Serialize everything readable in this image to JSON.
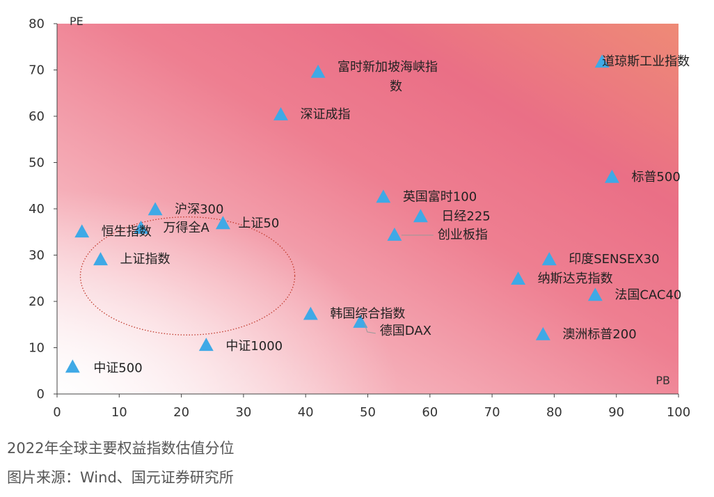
{
  "chart_data": {
    "type": "scatter",
    "xlabel": "PB",
    "ylabel": "PE",
    "xlim": [
      0,
      100
    ],
    "ylim": [
      0,
      80
    ],
    "x_ticks": [
      "0",
      "10",
      "20",
      "30",
      "40",
      "50",
      "60",
      "70",
      "80",
      "90",
      "100"
    ],
    "y_ticks": [
      "0",
      "10",
      "20",
      "30",
      "40",
      "50",
      "60",
      "70",
      "80"
    ],
    "marker": "triangle",
    "marker_color": "#3fa9e6",
    "grid": false,
    "highlight_circle": {
      "cx": 21,
      "cy": 25.5,
      "rx": 34.5,
      "ry": 25.5,
      "color": "#c0392b",
      "style": "dotted"
    },
    "points": [
      {
        "label": "中证500",
        "x": 2.5,
        "y": 5.8
      },
      {
        "label": "上证指数",
        "x": 7.0,
        "y": 29.0
      },
      {
        "label": "恒生指数",
        "x": 4.0,
        "y": 35.0
      },
      {
        "label": "万得全A",
        "x": 13.5,
        "y": 35.8
      },
      {
        "label": "沪深300",
        "x": 15.8,
        "y": 39.8
      },
      {
        "label": "上证50",
        "x": 26.7,
        "y": 36.8
      },
      {
        "label": "中证1000",
        "x": 24.0,
        "y": 10.5
      },
      {
        "label": "深证成指",
        "x": 36.0,
        "y": 60.3
      },
      {
        "label": "富时新加坡海峡指数",
        "x": 42.0,
        "y": 69.5
      },
      {
        "label": "韩国综合指数",
        "x": 40.8,
        "y": 17.2
      },
      {
        "label": "德国DAX",
        "x": 48.8,
        "y": 15.5
      },
      {
        "label": "英国富时100",
        "x": 52.5,
        "y": 42.5
      },
      {
        "label": "日经225",
        "x": 58.5,
        "y": 38.3
      },
      {
        "label": "创业板指",
        "x": 54.3,
        "y": 34.3
      },
      {
        "label": "印度SENSEX30",
        "x": 79.2,
        "y": 29.0
      },
      {
        "label": "纳斯达克指数",
        "x": 74.2,
        "y": 24.8
      },
      {
        "label": "法国CAC40",
        "x": 86.6,
        "y": 21.3
      },
      {
        "label": "澳洲标普200",
        "x": 78.2,
        "y": 12.8
      },
      {
        "label": "标普500",
        "x": 89.3,
        "y": 46.8
      },
      {
        "label": "道琼斯工业指数",
        "x": 87.7,
        "y": 71.7
      }
    ]
  },
  "caption": {
    "title": "2022年全球主要权益指数估值分位",
    "source": "图片来源：Wind、国元证券研究所"
  }
}
